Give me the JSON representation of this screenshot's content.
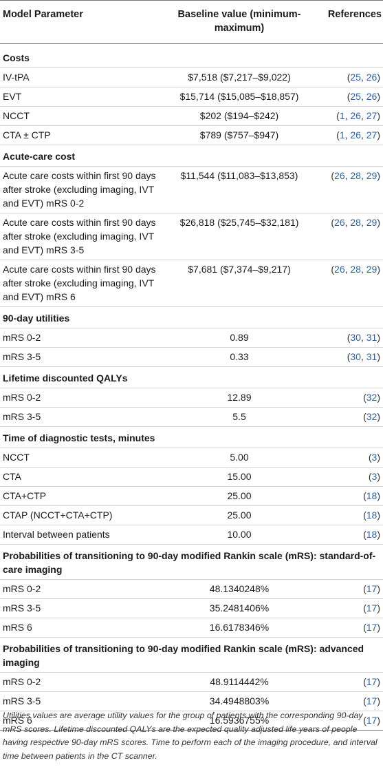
{
  "header": {
    "param": "Model Parameter",
    "value": "Baseline value (minimum-maximum)",
    "refs": "References"
  },
  "sections": [
    {
      "title": "Costs",
      "rows": [
        {
          "param": "IV-tPA",
          "value": "$7,518 ($7,217–$9,022)",
          "refs": "(25, 26)"
        },
        {
          "param": "EVT",
          "value": "$15,714 ($15,085–$18,857)",
          "refs": "(25, 26)"
        },
        {
          "param": "NCCT",
          "value": "$202 ($194–$242)",
          "refs": "(1, 26, 27)"
        },
        {
          "param": "CTA ± CTP",
          "value": "$789 ($757–$947)",
          "refs": "(1, 26, 27)"
        }
      ]
    },
    {
      "title": "Acute-care cost",
      "rows": [
        {
          "param": "Acute care costs within first 90 days after stroke (excluding imaging, IVT and EVT) mRS 0-2",
          "value": "$11,544 ($11,083–$13,853)",
          "refs": "(26, 28, 29)"
        },
        {
          "param": "Acute care costs within first 90 days after stroke (excluding imaging, IVT and EVT) mRS 3-5",
          "value": "$26,818 ($25,745–$32,181)",
          "refs": "(26, 28, 29)"
        },
        {
          "param": "Acute care costs within first 90 days after stroke (excluding imaging, IVT and EVT) mRS 6",
          "value": "$7,681 ($7,374–$9,217)",
          "refs": "(26, 28, 29)"
        }
      ]
    },
    {
      "title": "90-day utilities",
      "rows": [
        {
          "param": "mRS 0-2",
          "value": "0.89",
          "refs": "(30, 31)"
        },
        {
          "param": "mRS 3-5",
          "value": "0.33",
          "refs": "(30, 31)"
        }
      ]
    },
    {
      "title": "Lifetime discounted QALYs",
      "rows": [
        {
          "param": "mRS 0-2",
          "value": "12.89",
          "refs": "(32)"
        },
        {
          "param": "mRS 3-5",
          "value": "5.5",
          "refs": "(32)"
        }
      ]
    },
    {
      "title": "Time of diagnostic tests, minutes",
      "rows": [
        {
          "param": "NCCT",
          "value": "5.00",
          "refs": "(3)"
        },
        {
          "param": "CTA",
          "value": "15.00",
          "refs": "(3)"
        },
        {
          "param": "CTA+CTP",
          "value": "25.00",
          "refs": "(18)"
        },
        {
          "param": "CTAP (NCCT+CTA+CTP)",
          "value": "25.00",
          "refs": "(18)"
        },
        {
          "param": "Interval between patients",
          "value": "10.00",
          "refs": "(18)"
        }
      ]
    },
    {
      "title": "Probabilities of transitioning to 90-day modified Rankin scale (mRS): standard-of-care imaging",
      "rows": [
        {
          "param": "mRS 0-2",
          "value": "48.1340248%",
          "refs": "(17)"
        },
        {
          "param": "mRS 3-5",
          "value": "35.2481406%",
          "refs": "(17)"
        },
        {
          "param": "mRS 6",
          "value": "16.6178346%",
          "refs": "(17)"
        }
      ]
    },
    {
      "title": "Probabilities of transitioning to 90-day modified Rankin scale (mRS): advanced imaging",
      "rows": [
        {
          "param": "mRS 0-2",
          "value": "48.9114442%",
          "refs": "(17)"
        },
        {
          "param": "mRS 3-5",
          "value": "34.4948803%",
          "refs": "(17)"
        },
        {
          "param": "mRS 6",
          "value": "16.5936755%",
          "refs": "(17)"
        }
      ]
    }
  ],
  "footnote": "Utilities values are average utility values for the group of patients with the corresponding 90-day mRS scores. Lifetime discounted QALYs are the expected quality adjusted life years of people having respective 90-day mRS scores. Time to perform each of the imaging procedure, and interval time between patients in the CT scanner."
}
